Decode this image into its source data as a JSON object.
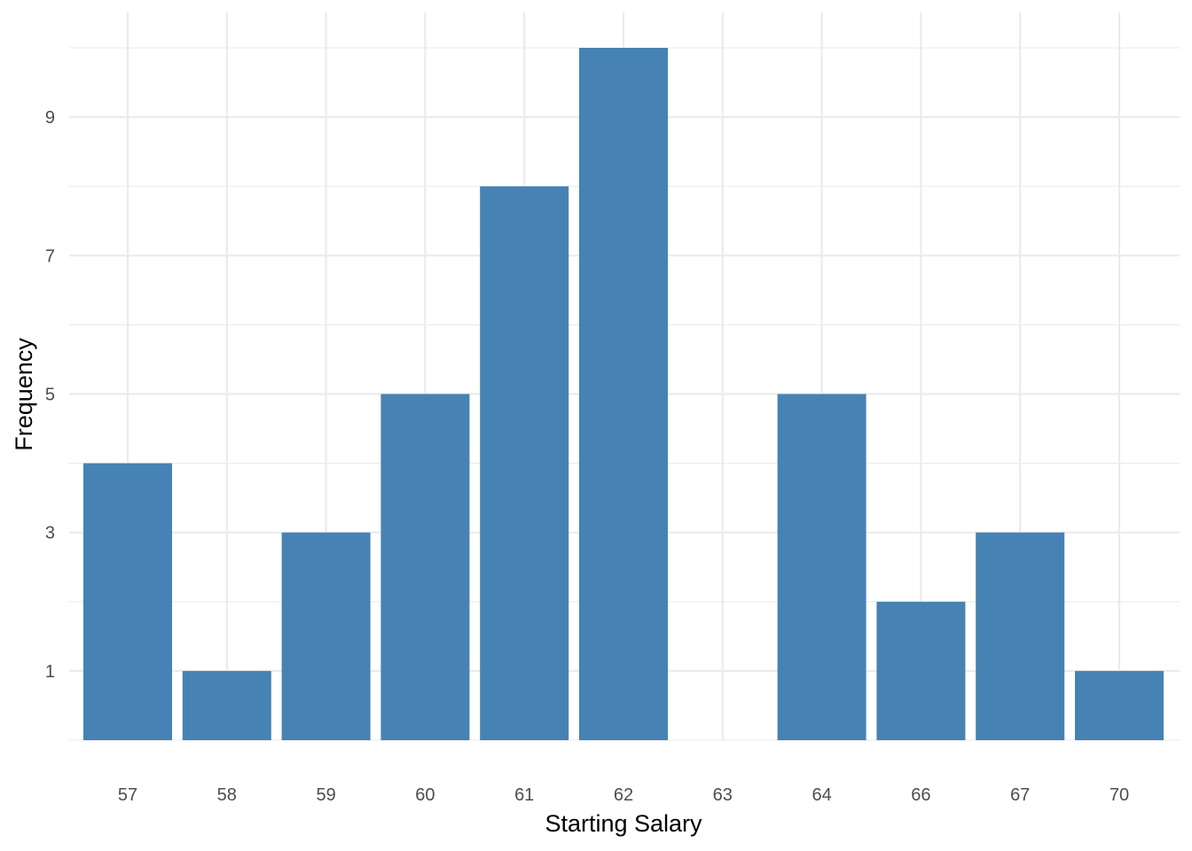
{
  "chart_data": {
    "type": "bar",
    "title": "",
    "xlabel": "Starting Salary",
    "ylabel": "Frequency",
    "categories": [
      "57",
      "58",
      "59",
      "60",
      "61",
      "62",
      "63",
      "64",
      "66",
      "67",
      "70"
    ],
    "values": [
      4,
      1,
      3,
      5,
      8,
      10,
      0,
      5,
      2,
      3,
      1
    ],
    "yticks": [
      1,
      3,
      5,
      7,
      9
    ],
    "ylim": [
      0,
      10.5
    ],
    "grid": true,
    "legend": "none",
    "bar_color": "#4682b4",
    "grid_color": "#ebebeb"
  }
}
